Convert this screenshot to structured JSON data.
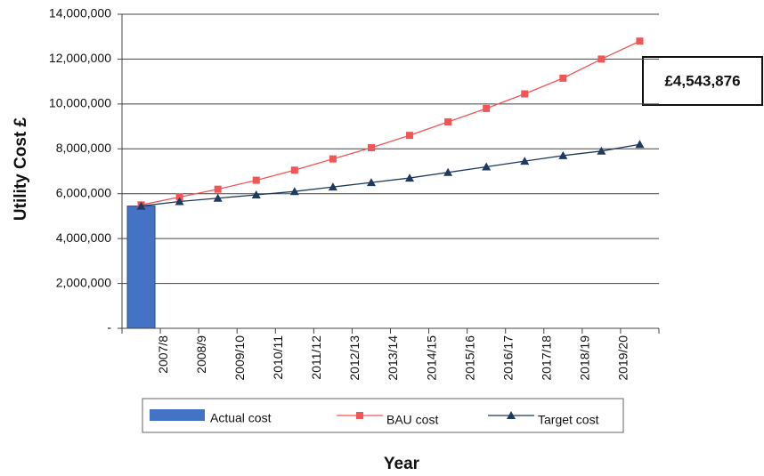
{
  "chart_data": {
    "type": "bar_line",
    "categories": [
      "2007/8",
      "2008/9",
      "2009/10",
      "2010/11",
      "2011/12",
      "2012/13",
      "2013/14",
      "2014/15",
      "2015/16",
      "2016/17",
      "2017/18",
      "2018/19",
      "2019/20",
      null
    ],
    "series": [
      {
        "name": "Actual cost",
        "type": "bar",
        "color": "#4472c4",
        "values": [
          5450000,
          null,
          null,
          null,
          null,
          null,
          null,
          null,
          null,
          null,
          null,
          null,
          null,
          null
        ]
      },
      {
        "name": "BAU cost",
        "type": "line",
        "marker": "square",
        "color": "#f25555",
        "values": [
          5500000,
          5850000,
          6200000,
          6600000,
          7050000,
          7550000,
          8050000,
          8600000,
          9200000,
          9800000,
          10450000,
          11150000,
          12000000,
          12800000
        ]
      },
      {
        "name": "Target cost",
        "type": "line",
        "marker": "triangle",
        "color": "#1f3a5f",
        "values": [
          5450000,
          5650000,
          5800000,
          5950000,
          6100000,
          6300000,
          6500000,
          6700000,
          6950000,
          7200000,
          7450000,
          7700000,
          7900000,
          8200000
        ]
      }
    ],
    "ylim": [
      0,
      14000000
    ],
    "yticks": [
      {
        "value": 0,
        "label": "-"
      },
      {
        "value": 2000000,
        "label": "2,000,000"
      },
      {
        "value": 4000000,
        "label": "4,000,000"
      },
      {
        "value": 6000000,
        "label": "6,000,000"
      },
      {
        "value": 8000000,
        "label": "8,000,000"
      },
      {
        "value": 10000000,
        "label": "10,000,000"
      },
      {
        "value": 12000000,
        "label": "12,000,000"
      },
      {
        "value": 14000000,
        "label": "14,000,000"
      }
    ],
    "grid": true,
    "y_label": "Utility Cost £",
    "x_label": "Year",
    "annotation": "£4,543,876",
    "legend_position": "bottom"
  }
}
